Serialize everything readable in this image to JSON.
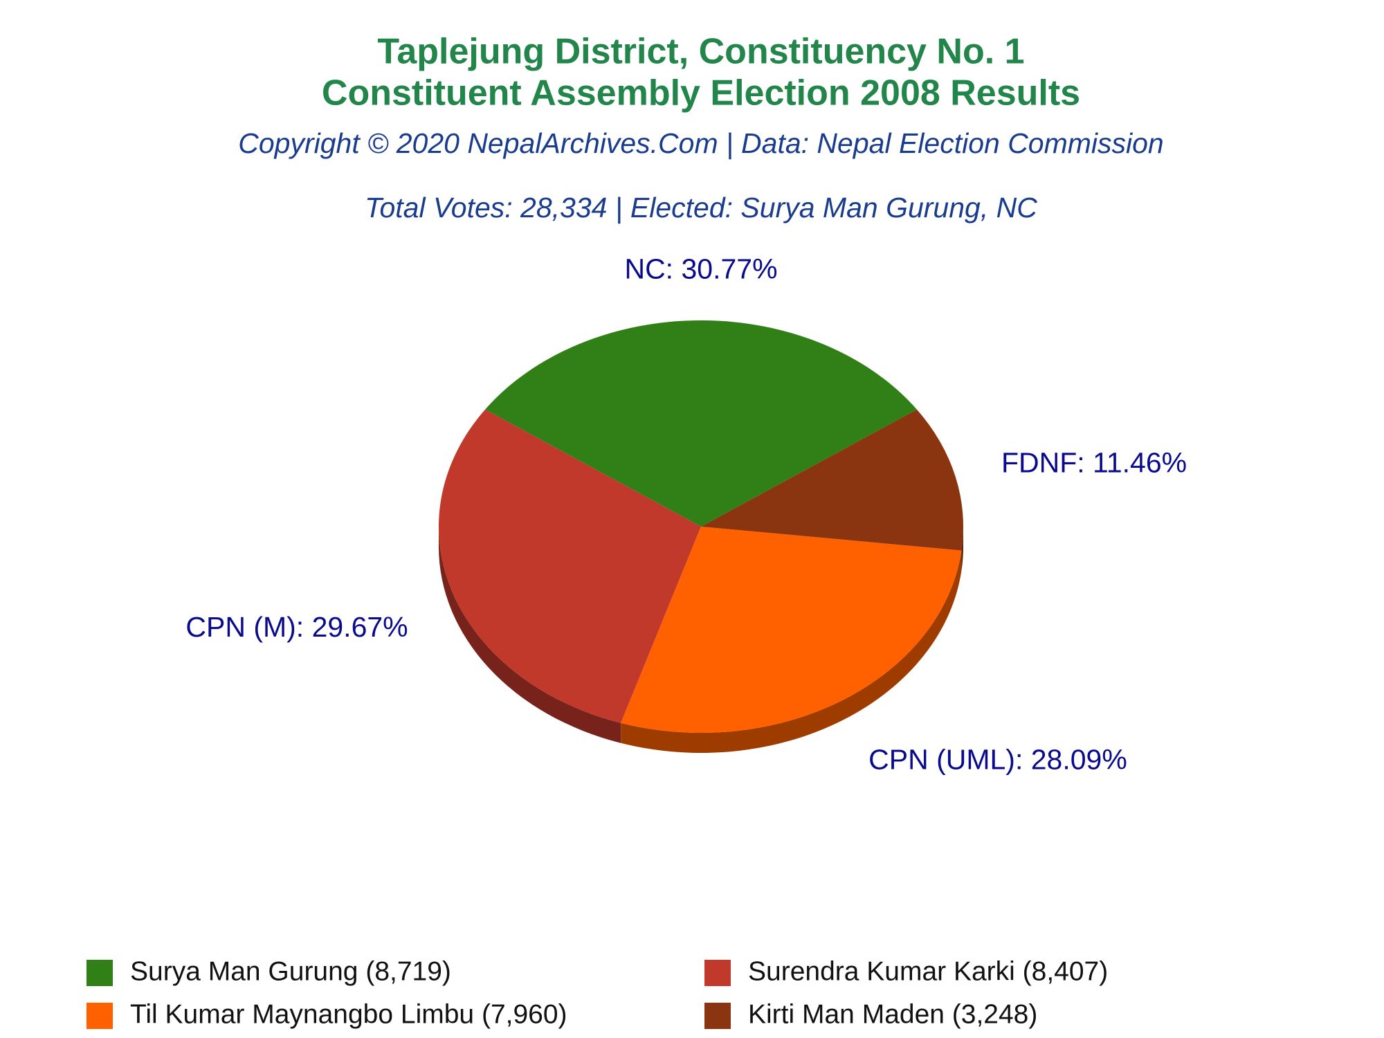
{
  "chart_data": {
    "type": "pie",
    "title": [
      "Taplejung District, Constituency No. 1",
      "Constituent Assembly Election 2008 Results"
    ],
    "subtitle": [
      "Copyright © 2020 NepalArchives.Com | Data: Nepal Election Commission",
      "Total Votes: 28,334 | Elected: Surya Man Gurung, NC"
    ],
    "values": [
      30.77,
      29.67,
      28.09,
      11.46
    ],
    "value_labels": [
      "NC: 30.77%",
      "CPN (M): 29.67%",
      "CPN (UML): 28.09%",
      "FDNF: 11.46%"
    ],
    "colors": [
      "#318017",
      "#c0392b",
      "#ff6000",
      "#8b3510"
    ],
    "legend": [
      "Surya Man Gurung (8,719)",
      "Surendra Kumar Karki (8,407)",
      "Til Kumar Maynangbo Limbu (7,960)",
      "Kirti Man Maden (3,248)"
    ]
  }
}
